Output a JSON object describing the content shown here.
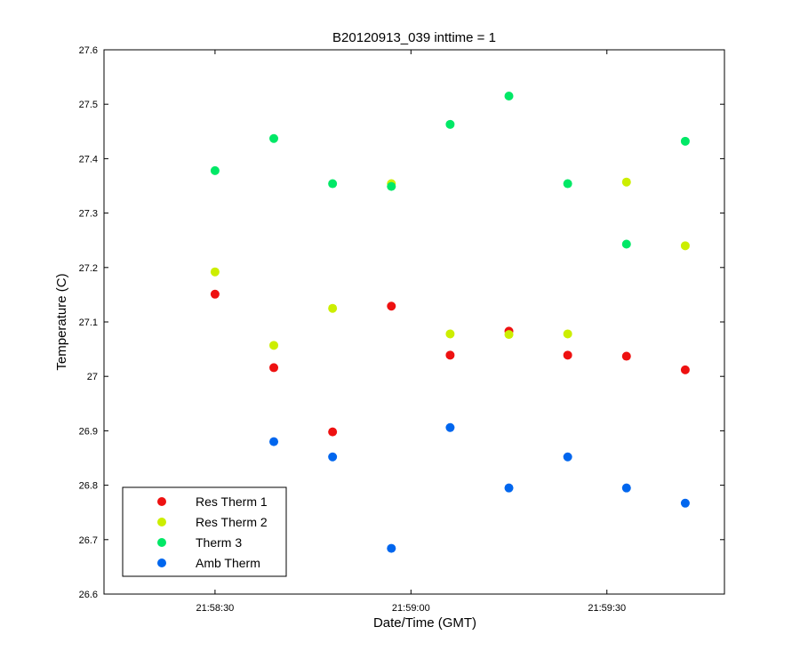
{
  "chart_data": {
    "type": "scatter",
    "title": "B20120913_039 inttime = 1",
    "xlabel": "Date/Time (GMT)",
    "ylabel": "Temperature (C)",
    "xlim": [
      "21:58:13",
      "21:59:48"
    ],
    "ylim": [
      26.6,
      27.6
    ],
    "x_ticks": [
      "21:58:30",
      "21:59:00",
      "21:59:30"
    ],
    "y_ticks": [
      "26.6",
      "26.7",
      "26.8",
      "26.9",
      "27",
      "27.1",
      "27.2",
      "27.3",
      "27.4",
      "27.5",
      "27.6"
    ],
    "grid": false,
    "legend_position": "lower-left",
    "x": [
      "21:58:30",
      "21:58:39",
      "21:58:48",
      "21:58:57",
      "21:59:06",
      "21:59:15",
      "21:59:24",
      "21:59:33",
      "21:59:42"
    ],
    "series": [
      {
        "name": "Res Therm 1",
        "color": "#ee1111",
        "values": [
          27.151,
          27.016,
          26.898,
          27.129,
          27.039,
          27.083,
          27.039,
          27.037,
          27.012
        ]
      },
      {
        "name": "Res Therm 2",
        "color": "#ccee00",
        "values": [
          27.192,
          27.057,
          27.125,
          27.354,
          27.078,
          27.077,
          27.078,
          27.357,
          27.24
        ]
      },
      {
        "name": "Therm 3",
        "color": "#00e866",
        "values": [
          27.378,
          27.437,
          27.354,
          27.349,
          27.463,
          27.515,
          27.354,
          27.243,
          27.432
        ]
      },
      {
        "name": "Amb Therm",
        "color": "#0066ee",
        "values": [
          null,
          26.88,
          26.852,
          26.684,
          26.906,
          26.795,
          26.852,
          26.795,
          26.767
        ]
      }
    ]
  }
}
